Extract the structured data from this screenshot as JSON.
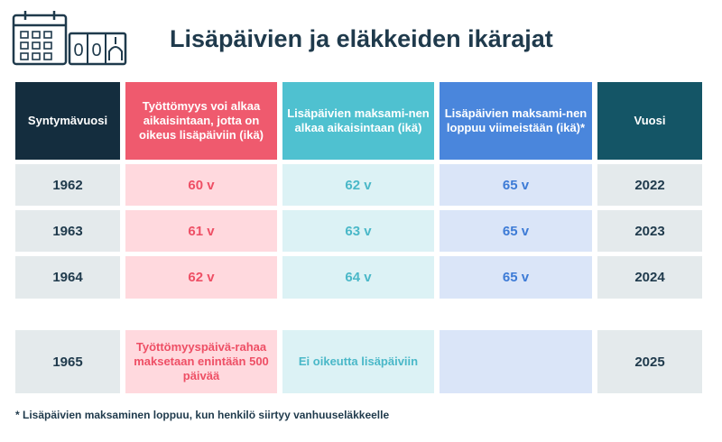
{
  "title": "Lisäpäivien ja eläkkeiden ikärajat",
  "icon": "calendar-counter-icon",
  "colors": {
    "dark": "#142d3e",
    "red": "#ef5a6e",
    "cyan": "#4fc1d0",
    "blue": "#4a86dc",
    "teal": "#145566"
  },
  "counter_digits": [
    "0",
    "0"
  ],
  "columns": [
    "Syntymävuosi",
    "Työttömyys voi alkaa aikaisintaan, jotta on oikeus lisäpäiviin (ikä)",
    "Lisäpäivien maksami-nen alkaa aikaisintaan (ikä)",
    "Lisäpäivien maksami-nen loppuu viimeistään (ikä)*",
    "Vuosi"
  ],
  "rows": [
    [
      "1962",
      "60 v",
      "62 v",
      "65 v",
      "2022"
    ],
    [
      "1963",
      "61 v",
      "63 v",
      "65 v",
      "2023"
    ],
    [
      "1964",
      "62 v",
      "64 v",
      "65 v",
      "2024"
    ],
    [
      "1965",
      "Työttömyyspäivä-rahaa maksetaan enintään 500 päivää",
      "Ei oikeutta lisäpäiviin",
      "",
      "2025"
    ]
  ],
  "footnote": "* Lisäpäivien maksaminen loppuu, kun henkilö siirtyy vanhuuseläkkeelle"
}
